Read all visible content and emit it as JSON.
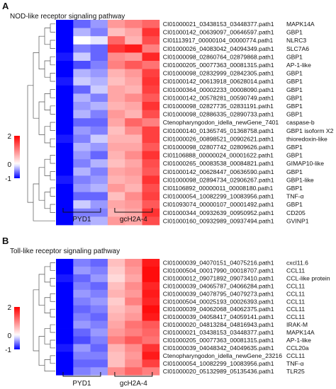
{
  "chart_data": [
    {
      "panel_label": "A",
      "type": "heatmap",
      "title": "NOD-like receptor signaling pathway",
      "groups": [
        "PYD1",
        "gcH2A-4"
      ],
      "color_scale": {
        "min": -1,
        "mid": 0,
        "max": 2,
        "ticks": [
          "2",
          "0",
          "-1"
        ],
        "colors": {
          "low": "#0000ff",
          "mid": "#ffffff",
          "high": "#ff0000"
        }
      },
      "rows": [
        {
          "id": "CI01000021_03438153_03448377.path1",
          "name": "MAPK14A",
          "values": [
            -1,
            -0.6,
            -0.4,
            0.8,
            1.0,
            1.2
          ]
        },
        {
          "id": "CI01000142_00639097_00646597.path1",
          "name": "GBP1",
          "values": [
            -1,
            -0.3,
            -0.5,
            0.5,
            0.7,
            1.6
          ]
        },
        {
          "id": "CI01113917_00000104_00000774.path1",
          "name": "NLRC3",
          "highlight": "#ff0000",
          "values": [
            -1,
            0.0,
            -0.1,
            1.2,
            0.6,
            1.4
          ]
        },
        {
          "id": "CI01000026_04083042_04094349.path1",
          "name": "SLC7A6",
          "values": [
            -1,
            -0.5,
            -0.6,
            1.6,
            1.8,
            1.0
          ]
        },
        {
          "id": "CI01000098_02860764_02879868.path1",
          "name": "GBP1",
          "values": [
            -0.9,
            -0.2,
            -0.6,
            0.9,
            0.8,
            1.7
          ]
        },
        {
          "id": "CI01000205_00077363_00081315.path1",
          "name": "AP-1-like",
          "values": [
            -1,
            -0.7,
            -0.5,
            1.0,
            1.3,
            1.1
          ]
        },
        {
          "id": "CI01000098_02832999_02842305.path1",
          "name": "GBP1",
          "values": [
            -1,
            -0.3,
            -0.4,
            0.6,
            0.8,
            1.5
          ]
        },
        {
          "id": "CI01000142_00613918_00628014.path1",
          "name": "GBP1",
          "values": [
            -0.9,
            -0.2,
            -0.3,
            0.5,
            0.7,
            1.6
          ]
        },
        {
          "id": "CI01000364_00002233_00008090.path1",
          "name": "GBP1",
          "values": [
            -1,
            -0.6,
            -0.2,
            0.7,
            0.6,
            1.5
          ]
        },
        {
          "id": "CI01000142_00578281_00590749.path1",
          "name": "GBP1",
          "values": [
            -1,
            -0.3,
            -0.5,
            0.7,
            0.9,
            1.3
          ]
        },
        {
          "id": "CI01000098_02827735_02831191.path1",
          "name": "GBP1",
          "values": [
            -1,
            -0.4,
            -0.3,
            0.6,
            0.7,
            1.6
          ]
        },
        {
          "id": "CI01000098_02886335_02890733.path1",
          "name": "GBP1",
          "values": [
            -1,
            -0.3,
            -0.5,
            0.8,
            0.6,
            1.4
          ]
        },
        {
          "id": "Ctenopharyngodon_idella_newGene_7401",
          "name": "caspase-b",
          "values": [
            -1,
            -0.6,
            -0.6,
            0.7,
            1.2,
            1.0
          ]
        },
        {
          "id": "CI01000140_01365745_01368758.path1",
          "name": "GBP1 isoform X2",
          "values": [
            -1,
            -0.4,
            -0.5,
            0.5,
            0.9,
            1.5
          ]
        },
        {
          "id": "CI01000026_00898521_00902621.path1",
          "name": "thioredoxin-like",
          "values": [
            -0.9,
            -0.5,
            -0.2,
            0.6,
            0.6,
            1.5
          ]
        },
        {
          "id": "CI01000098_02807742_02809626.path1",
          "name": "GBP1",
          "values": [
            -1,
            -0.3,
            -0.4,
            0.7,
            0.7,
            1.3
          ]
        },
        {
          "id": "CI01106888_00000024_00001622.path1",
          "name": "GBP1",
          "values": [
            -1,
            -0.4,
            -0.6,
            0.6,
            0.9,
            1.6
          ]
        },
        {
          "id": "CI01000265_00083538_00084821.path1",
          "name": "GIMAP10-like",
          "values": [
            -1,
            -0.5,
            -0.3,
            0.5,
            0.7,
            1.4
          ]
        },
        {
          "id": "CI01000142_00628447_00636590.path1",
          "name": "GBP1",
          "values": [
            -1,
            -0.3,
            -0.5,
            0.7,
            0.8,
            1.3
          ]
        },
        {
          "id": "CI01000098_02894734_02906267.path1",
          "name": "GBP1-like",
          "values": [
            -0.9,
            -0.5,
            -0.4,
            0.6,
            0.7,
            1.6
          ]
        },
        {
          "id": "CI01106892_00000011_00008180.path1",
          "name": "GBP1",
          "values": [
            -1,
            -0.4,
            -0.3,
            0.8,
            0.6,
            1.4
          ]
        },
        {
          "id": "CI01000054_10082299_10083956.path1",
          "name": "TNF-α",
          "values": [
            -1,
            -0.6,
            -0.6,
            0.5,
            0.9,
            1.5
          ]
        },
        {
          "id": "CI01093074_00000107_00001492.path1",
          "name": "GBP1",
          "values": [
            -1,
            -0.2,
            -0.4,
            0.7,
            0.8,
            1.3
          ]
        },
        {
          "id": "CI01000344_00932639_00950952.path1",
          "name": "CD205",
          "values": [
            -1,
            -0.5,
            -0.5,
            0.6,
            0.7,
            1.6
          ]
        },
        {
          "id": "CI01000160_00932989_00937494.path1",
          "name": "GVINP1",
          "values": [
            -1,
            -0.4,
            -0.3,
            0.8,
            0.7,
            1.4
          ]
        }
      ]
    },
    {
      "panel_label": "B",
      "type": "heatmap",
      "title": "Toll-like receptor signaling pathway",
      "groups": [
        "PYD1",
        "gcH2A-4"
      ],
      "color_scale": {
        "min": -1,
        "mid": 0,
        "max": 2,
        "ticks": [
          "2",
          "0",
          "-1"
        ],
        "colors": {
          "low": "#0000ff",
          "mid": "#ffffff",
          "high": "#ff0000"
        }
      },
      "rows": [
        {
          "id": "CI01000039_04070151_04075216.path1",
          "name": "cxcl11.6",
          "values": [
            -1,
            -0.5,
            -0.6,
            0.5,
            0.9,
            1.8
          ]
        },
        {
          "id": "CI01000504_00017990_00018707.path1",
          "name": "CCL11",
          "values": [
            -1,
            -0.4,
            -0.5,
            0.4,
            0.8,
            1.9
          ]
        },
        {
          "id": "CI01000012_09071892_09073410.path1",
          "name": "CCL-like protein",
          "values": [
            -0.9,
            -0.6,
            -0.4,
            0.3,
            0.7,
            1.9
          ]
        },
        {
          "id": "CI01000039_04065787_04066284.path1",
          "name": "CCL11",
          "values": [
            -1,
            -0.5,
            -0.6,
            0.5,
            0.9,
            1.7
          ]
        },
        {
          "id": "CI01000039_04078795_04079273.path1",
          "name": "CCL11",
          "values": [
            -1,
            -0.4,
            -0.5,
            0.6,
            0.8,
            1.8
          ]
        },
        {
          "id": "CI01000504_00025193_00026393.path1",
          "name": "CCL11",
          "values": [
            -1,
            -0.5,
            -0.4,
            0.4,
            1.0,
            1.7
          ]
        },
        {
          "id": "CI01000039_04062068_04062375.path1",
          "name": "CCL11",
          "values": [
            -1,
            -0.6,
            -0.5,
            0.5,
            0.7,
            1.9
          ]
        },
        {
          "id": "CI01000039_04058417_04059141.path1",
          "name": "CCL11",
          "values": [
            -1,
            -0.5,
            -0.6,
            0.6,
            0.8,
            1.8
          ]
        },
        {
          "id": "CI01000020_04813284_04816943.path1",
          "name": "IRAK-M",
          "values": [
            -1,
            -0.4,
            -0.5,
            0.7,
            1.1,
            1.3
          ]
        },
        {
          "id": "CI01000021_03438153_03448377.path1",
          "name": "MAPK14A",
          "values": [
            -1,
            -0.6,
            -0.4,
            0.8,
            1.0,
            1.2
          ]
        },
        {
          "id": "CI01000205_00077363_00081315.path1",
          "name": "AP-1-like",
          "values": [
            -1,
            -0.7,
            -0.5,
            1.0,
            1.3,
            1.1
          ]
        },
        {
          "id": "CI01000039_04048342_04049635.path1",
          "name": "CCL20a",
          "values": [
            -0.9,
            -0.4,
            -0.6,
            0.6,
            0.9,
            1.6
          ]
        },
        {
          "id": "Ctenopharyngodon_idella_newGene_23216",
          "name": "CCL11",
          "values": [
            -1,
            -0.5,
            -0.5,
            0.5,
            0.8,
            1.8
          ]
        },
        {
          "id": "CI01000054_10082299_10083956.path1",
          "name": "TNF-α",
          "highlight": "#ff0000",
          "values": [
            -1,
            -0.6,
            -0.6,
            0.5,
            0.9,
            1.5
          ]
        },
        {
          "id": "CI01000020_05132989_05135436.path1",
          "name": "TLR25",
          "highlight": "#ff0000",
          "values": [
            -1,
            -0.5,
            -0.4,
            0.9,
            1.2,
            1.0
          ]
        }
      ]
    }
  ]
}
